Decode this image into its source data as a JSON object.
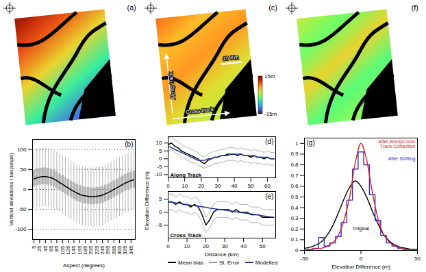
{
  "chart_data": [
    {
      "type": "map",
      "panel_label": "(a)"
    },
    {
      "type": "map",
      "panel_label": "(c)",
      "annotations": [
        "Along track",
        "Cross track"
      ],
      "scale_bar": "10 Km",
      "colorbar": {
        "range": [
          -15,
          15
        ],
        "ticks": [
          {
            "value": 15,
            "label": "15m"
          },
          {
            "value": -15,
            "label": "-15m"
          }
        ]
      }
    },
    {
      "type": "map",
      "panel_label": "(f)"
    },
    {
      "type": "box",
      "panel_label": "(b)",
      "x_label": "Aspect (degrees)",
      "y_label": "Vertical deviations / tan(slope)",
      "x": [
        5,
        15,
        25,
        35,
        45,
        55,
        65,
        75,
        85,
        95,
        105,
        115,
        125,
        135,
        145,
        155,
        165,
        175,
        185,
        195,
        205,
        215,
        225,
        235,
        245,
        255,
        265,
        275,
        285,
        295,
        305,
        315,
        325,
        335,
        345,
        355
      ],
      "box_low": [
        6,
        9,
        11,
        12,
        12,
        11,
        9,
        6,
        2,
        -3,
        -7,
        -12,
        -16,
        -21,
        -25,
        -29,
        -32,
        -35,
        -36,
        -37,
        -38,
        -38,
        -37,
        -36,
        -34,
        -31,
        -28,
        -24,
        -20,
        -16,
        -12,
        -8,
        -4,
        -1,
        2,
        4
      ],
      "box_high": [
        48,
        51,
        53,
        54,
        54,
        53,
        51,
        48,
        44,
        39,
        35,
        30,
        26,
        21,
        17,
        13,
        10,
        7,
        6,
        5,
        4,
        4,
        5,
        6,
        8,
        11,
        14,
        18,
        22,
        26,
        30,
        34,
        38,
        41,
        44,
        46
      ],
      "whisker_low": [
        -49,
        -46,
        -44,
        -43,
        -43,
        -44,
        -46,
        -49,
        -53,
        -58,
        -62,
        -67,
        -71,
        -76,
        -80,
        -84,
        -87,
        -90,
        -91,
        -92,
        -93,
        -93,
        -92,
        -91,
        -89,
        -86,
        -83,
        -79,
        -75,
        -71,
        -67,
        -63,
        -59,
        -56,
        -53,
        -51
      ],
      "whisker_high": [
        98,
        101,
        103,
        104,
        104,
        103,
        101,
        98,
        94,
        89,
        85,
        80,
        76,
        71,
        67,
        63,
        60,
        57,
        56,
        55,
        54,
        54,
        55,
        56,
        58,
        61,
        64,
        68,
        72,
        76,
        80,
        84,
        88,
        91,
        94,
        96
      ],
      "model": [
        26,
        29,
        31,
        32,
        32,
        31,
        29,
        26,
        22,
        17,
        13,
        8,
        4,
        -1,
        -5,
        -9,
        -12,
        -15,
        -16,
        -17,
        -18,
        -18,
        -17,
        -16,
        -14,
        -11,
        -8,
        -4,
        0,
        4,
        8,
        12,
        16,
        19,
        22,
        24
      ],
      "color": "#b3b3b3",
      "model_color": "#000000",
      "xlim": [
        0,
        360
      ],
      "xticks": [
        5,
        25,
        45,
        65,
        85,
        105,
        125,
        145,
        165,
        185,
        205,
        225,
        245,
        265,
        285,
        305,
        325,
        345
      ],
      "ylim": [
        -125,
        125
      ],
      "yticks": [
        -100,
        -50,
        0,
        50,
        100
      ],
      "grid": true
    },
    {
      "type": "line",
      "panel_label": "(d)",
      "title": "Along Track",
      "y_label": "Elevation Difference (m)",
      "x": [
        0,
        2,
        4,
        6,
        8,
        10,
        12,
        14,
        16,
        18,
        20,
        22,
        24,
        26,
        28,
        30,
        32,
        34,
        36,
        38,
        40,
        42,
        44,
        46,
        48,
        50,
        52,
        54,
        56,
        58,
        60,
        62,
        64
      ],
      "series": [
        {
          "color": "#000000",
          "values": [
            9,
            10,
            8,
            7,
            5,
            4,
            3,
            2,
            1,
            0,
            -2,
            -3,
            -1,
            0,
            1,
            1,
            2,
            2,
            3,
            3,
            3,
            2,
            3,
            2,
            2,
            1,
            2,
            1,
            1,
            0,
            1,
            0,
            0
          ]
        },
        {
          "color": "#999999",
          "upper": [
            13,
            14,
            12,
            11,
            9,
            8,
            7,
            6,
            5,
            4,
            2,
            1,
            3,
            4,
            5,
            5,
            6,
            6,
            7,
            7,
            7,
            6,
            7,
            6,
            6,
            5,
            6,
            5,
            5,
            4,
            5,
            4,
            4
          ],
          "lower": [
            5,
            6,
            4,
            3,
            1,
            0,
            -1,
            -2,
            -3,
            -4,
            -5,
            -6,
            -5,
            -4,
            -3,
            -3,
            -2,
            -2,
            -1,
            -1,
            -1,
            -2,
            -1,
            -2,
            -2,
            -3,
            -2,
            -3,
            -3,
            -4,
            -3,
            -4,
            -4
          ]
        },
        {
          "color": "#23368f",
          "values": [
            8,
            7,
            6,
            5,
            4,
            3,
            2,
            1,
            0,
            -1,
            -1,
            -1,
            0,
            0,
            1,
            1,
            2,
            2,
            2,
            3,
            3,
            3,
            3,
            2,
            2,
            2,
            2,
            1,
            1,
            1,
            1,
            0,
            0
          ]
        }
      ],
      "xlim": [
        0,
        65
      ],
      "xticks": [
        0,
        10,
        20,
        30,
        40,
        50,
        60
      ],
      "ylim": [
        -12,
        14
      ],
      "yticks": [
        -10,
        -5,
        0,
        5,
        10
      ]
    },
    {
      "type": "line",
      "panel_label": "(e)",
      "title": "Cross Track",
      "x_label": "Distance (km)",
      "x": [
        0,
        2,
        4,
        6,
        8,
        10,
        12,
        14,
        16,
        18,
        20,
        22,
        24,
        26,
        28,
        30,
        32,
        34,
        36,
        38,
        40,
        42,
        44,
        46,
        48,
        50,
        52,
        54,
        56
      ],
      "series": [
        {
          "name": "Mean bias",
          "color": "#000000",
          "values": [
            4,
            4,
            3,
            4,
            3,
            3,
            2,
            3,
            2,
            -1,
            -5,
            -3,
            0,
            1,
            1,
            1,
            1,
            0,
            1,
            0,
            0,
            0,
            -1,
            -1,
            -1,
            -2,
            -2,
            -2,
            -2
          ]
        },
        {
          "name": "St. Error",
          "color": "#999999",
          "upper": [
            7,
            7,
            6,
            7,
            6,
            6,
            5,
            6,
            5,
            2,
            -2,
            0,
            3,
            4,
            4,
            4,
            4,
            3,
            4,
            3,
            3,
            3,
            2,
            2,
            2,
            1,
            1,
            1,
            1
          ],
          "lower": [
            1,
            1,
            0,
            1,
            0,
            0,
            -1,
            0,
            -1,
            -4,
            -8,
            -6,
            -3,
            -2,
            -2,
            -2,
            -2,
            -3,
            -2,
            -3,
            -3,
            -3,
            -4,
            -4,
            -4,
            -5,
            -5,
            -5,
            -5
          ]
        },
        {
          "name": "Modelled",
          "color": "#23368f",
          "values": [
            4,
            3.8,
            3.6,
            3.4,
            3.1,
            2.9,
            2.7,
            2.5,
            2.3,
            2.1,
            1.9,
            1.6,
            1.4,
            1.2,
            1,
            0.8,
            0.6,
            0.4,
            0.1,
            -0.1,
            -0.3,
            -0.5,
            -0.7,
            -0.9,
            -1.1,
            -1.4,
            -1.6,
            -1.8,
            -2
          ]
        }
      ],
      "legend": "bottom",
      "xlim": [
        0,
        57
      ],
      "xticks": [
        0,
        10,
        20,
        30,
        40,
        50
      ],
      "ylim": [
        -10,
        8
      ],
      "yticks": [
        -5,
        0,
        5
      ]
    },
    {
      "type": "line",
      "panel_label": "(g)",
      "x_label": "Elevation Difference (m)",
      "x": [
        -50,
        -45,
        -40,
        -35,
        -30,
        -25,
        -20,
        -15,
        -10,
        -5,
        0,
        5,
        10,
        15,
        20,
        25,
        30,
        35,
        40,
        45,
        50
      ],
      "series": [
        {
          "name": "Original",
          "color": "#000000",
          "values": [
            0.02,
            0.03,
            0.05,
            0.08,
            0.14,
            0.23,
            0.35,
            0.48,
            0.59,
            0.65,
            0.6,
            0.5,
            0.37,
            0.25,
            0.15,
            0.09,
            0.05,
            0.03,
            0.02,
            0.01,
            0.01
          ]
        },
        {
          "name": "After Shifting",
          "color": "#3030c8",
          "line_style": "step",
          "values": [
            0.005,
            0.01,
            0.02,
            0.12,
            0.04,
            0.07,
            0.13,
            0.26,
            0.47,
            0.76,
            0.92,
            0.8,
            0.52,
            0.28,
            0.14,
            0.07,
            0.04,
            0.02,
            0.01,
            0.005,
            0.005
          ]
        },
        {
          "name": "After Along/Cross Track Correction",
          "color": "#e02020",
          "values": [
            0.005,
            0.01,
            0.015,
            0.02,
            0.04,
            0.07,
            0.14,
            0.28,
            0.5,
            0.82,
            1.0,
            0.85,
            0.55,
            0.3,
            0.15,
            0.08,
            0.04,
            0.02,
            0.01,
            0.005,
            0.005
          ]
        }
      ],
      "xlim": [
        -50,
        50
      ],
      "xticks": [
        -50,
        0,
        50
      ],
      "ylim": [
        0,
        1.05
      ],
      "yticks": [
        0,
        0.1,
        0.2,
        0.3,
        0.4,
        0.5,
        0.6,
        0.7,
        0.8,
        0.9,
        1
      ]
    }
  ]
}
